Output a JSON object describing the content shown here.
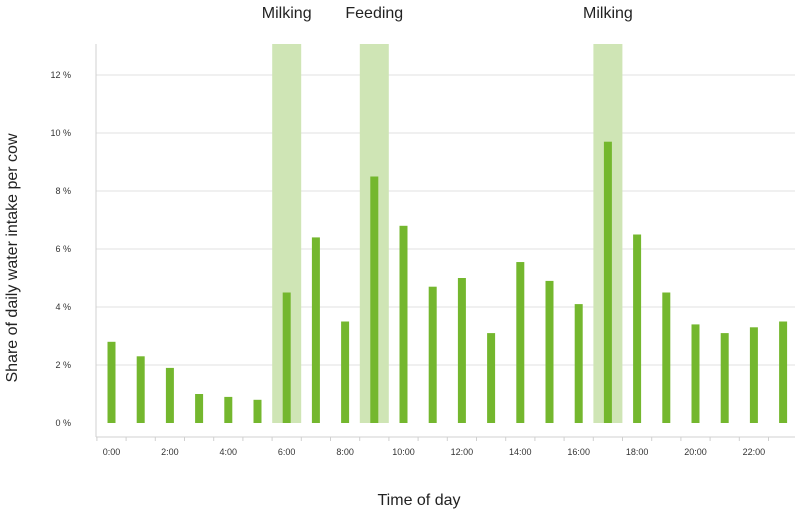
{
  "chart_data": {
    "type": "bar",
    "title": "",
    "xlabel": "Time of day",
    "ylabel": "Share of daily water intake per cow",
    "categories": [
      "0:00",
      "1:00",
      "2:00",
      "3:00",
      "4:00",
      "5:00",
      "6:00",
      "7:00",
      "8:00",
      "9:00",
      "10:00",
      "11:00",
      "12:00",
      "13:00",
      "14:00",
      "15:00",
      "16:00",
      "17:00",
      "18:00",
      "19:00",
      "20:00",
      "21:00",
      "22:00",
      "23:00"
    ],
    "x_tick_labels": [
      "0:00",
      "2:00",
      "4:00",
      "6:00",
      "8:00",
      "10:00",
      "12:00",
      "14:00",
      "16:00",
      "18:00",
      "20:00",
      "22:00"
    ],
    "values": [
      2.8,
      2.3,
      1.9,
      1.0,
      0.9,
      0.8,
      4.5,
      6.4,
      3.5,
      8.5,
      6.8,
      4.7,
      5.0,
      3.1,
      5.55,
      4.9,
      4.1,
      9.7,
      6.5,
      4.5,
      3.4,
      3.1,
      3.3,
      3.5
    ],
    "ylim": [
      0,
      13
    ],
    "y_ticks": [
      0,
      2,
      4,
      6,
      8,
      10,
      12
    ],
    "y_tick_labels": [
      "0 %",
      "2 %",
      "4 %",
      "6 %",
      "8 %",
      "10 %",
      "12 %"
    ],
    "grid": "horizontal",
    "bar_color": "#74b72e",
    "highlight_color": "#cfe5b5",
    "highlights": [
      {
        "label": "Milking",
        "hour": 6
      },
      {
        "label": "Feeding",
        "hour": 9
      },
      {
        "label": "Milking",
        "hour": 17
      }
    ]
  }
}
